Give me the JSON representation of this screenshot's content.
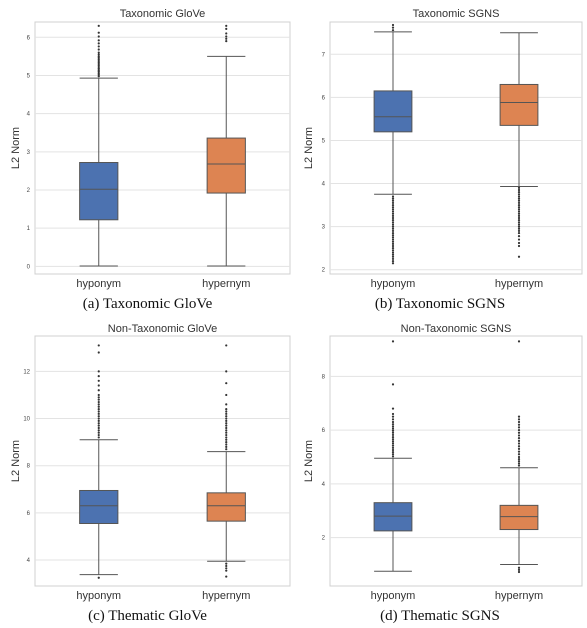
{
  "chart_data": [
    {
      "type": "box",
      "title": "Taxonomic GloVe",
      "ylabel": "L2 Norm",
      "xlabel": "",
      "categories": [
        "hyponym",
        "hypernym"
      ],
      "colors": [
        "#4c72b0",
        "#dd8452"
      ],
      "ylim": [
        -0.2,
        6.4
      ],
      "yticks": [
        0,
        1,
        2,
        3,
        4,
        5,
        6
      ],
      "grid": true,
      "boxes": [
        {
          "q1": 1.22,
          "median": 2.02,
          "q3": 2.72,
          "whisker_low": 0.01,
          "whisker_high": 4.93,
          "outliers": [
            4.98,
            5.02,
            5.06,
            5.1,
            5.14,
            5.18,
            5.22,
            5.26,
            5.3,
            5.34,
            5.38,
            5.42,
            5.46,
            5.5,
            5.55,
            5.6,
            5.68,
            5.76,
            5.84,
            5.92,
            6.02,
            6.12,
            6.3
          ]
        },
        {
          "q1": 1.92,
          "median": 2.68,
          "q3": 3.36,
          "whisker_low": 0.01,
          "whisker_high": 5.5,
          "outliers": [
            5.9,
            5.96,
            6.02,
            6.1,
            6.22,
            6.3
          ]
        }
      ]
    },
    {
      "type": "box",
      "title": "Taxonomic SGNS",
      "ylabel": "L2 Norm",
      "xlabel": "",
      "categories": [
        "hyponym",
        "hypernym"
      ],
      "colors": [
        "#4c72b0",
        "#dd8452"
      ],
      "ylim": [
        1.9,
        7.75
      ],
      "yticks": [
        2,
        3,
        4,
        5,
        6,
        7
      ],
      "grid": true,
      "boxes": [
        {
          "q1": 5.2,
          "median": 5.55,
          "q3": 6.15,
          "whisker_low": 3.75,
          "whisker_high": 7.52,
          "outliers": [
            2.15,
            2.2,
            2.25,
            2.3,
            2.35,
            2.4,
            2.45,
            2.5,
            2.55,
            2.6,
            2.65,
            2.7,
            2.75,
            2.8,
            2.85,
            2.9,
            2.95,
            3.0,
            3.05,
            3.1,
            3.15,
            3.2,
            3.25,
            3.3,
            3.35,
            3.4,
            3.45,
            3.5,
            3.55,
            3.6,
            3.65,
            3.7,
            7.56,
            7.62,
            7.68
          ]
        },
        {
          "q1": 5.35,
          "median": 5.88,
          "q3": 6.3,
          "whisker_low": 3.93,
          "whisker_high": 7.5,
          "outliers": [
            2.3,
            2.55,
            2.62,
            2.7,
            2.78,
            2.85,
            2.9,
            2.95,
            3.0,
            3.05,
            3.1,
            3.15,
            3.2,
            3.25,
            3.3,
            3.35,
            3.4,
            3.45,
            3.5,
            3.55,
            3.6,
            3.65,
            3.7,
            3.75,
            3.8,
            3.85,
            3.9
          ]
        }
      ]
    },
    {
      "type": "box",
      "title": "Non-Taxonomic GloVe",
      "ylabel": "L2 Norm",
      "xlabel": "",
      "categories": [
        "hyponym",
        "hypernym"
      ],
      "colors": [
        "#4c72b0",
        "#dd8452"
      ],
      "ylim": [
        2.9,
        13.5
      ],
      "yticks": [
        4,
        6,
        8,
        10,
        12
      ],
      "grid": true,
      "boxes": [
        {
          "q1": 5.55,
          "median": 6.3,
          "q3": 6.95,
          "whisker_low": 3.38,
          "whisker_high": 9.1,
          "outliers": [
            3.25,
            9.2,
            9.3,
            9.4,
            9.5,
            9.6,
            9.7,
            9.8,
            9.9,
            10.0,
            10.1,
            10.2,
            10.3,
            10.4,
            10.5,
            10.6,
            10.7,
            10.8,
            10.9,
            11.0,
            11.2,
            11.4,
            11.6,
            11.8,
            12.0,
            12.8,
            13.1
          ]
        },
        {
          "q1": 5.65,
          "median": 6.3,
          "q3": 6.85,
          "whisker_low": 3.95,
          "whisker_high": 8.6,
          "outliers": [
            3.3,
            3.55,
            3.65,
            3.75,
            3.85,
            8.7,
            8.8,
            8.9,
            9.0,
            9.1,
            9.2,
            9.3,
            9.4,
            9.5,
            9.6,
            9.7,
            9.8,
            9.9,
            10.0,
            10.1,
            10.2,
            10.3,
            10.4,
            10.6,
            11.0,
            11.5,
            12.0,
            13.1
          ]
        }
      ]
    },
    {
      "type": "box",
      "title": "Non-Taxonomic SGNS",
      "ylabel": "L2 Norm",
      "xlabel": "",
      "categories": [
        "hyponym",
        "hypernym"
      ],
      "colors": [
        "#4c72b0",
        "#dd8452"
      ],
      "ylim": [
        0.2,
        9.5
      ],
      "yticks": [
        2,
        4,
        6,
        8
      ],
      "grid": true,
      "boxes": [
        {
          "q1": 2.25,
          "median": 2.8,
          "q3": 3.3,
          "whisker_low": 0.75,
          "whisker_high": 4.95,
          "outliers": [
            5.02,
            5.1,
            5.18,
            5.26,
            5.34,
            5.42,
            5.5,
            5.58,
            5.66,
            5.74,
            5.82,
            5.9,
            5.98,
            6.06,
            6.14,
            6.22,
            6.3,
            6.4,
            6.5,
            6.6,
            6.8,
            7.7,
            9.3
          ]
        },
        {
          "q1": 2.3,
          "median": 2.78,
          "q3": 3.2,
          "whisker_low": 1.0,
          "whisker_high": 4.6,
          "outliers": [
            0.72,
            0.8,
            0.88,
            4.68,
            4.76,
            4.84,
            4.92,
            5.0,
            5.1,
            5.2,
            5.3,
            5.4,
            5.5,
            5.6,
            5.7,
            5.8,
            5.9,
            6.0,
            6.1,
            6.2,
            6.3,
            6.4,
            6.5,
            9.3
          ]
        }
      ]
    }
  ],
  "captions": [
    "(a) Taxonomic GloVe",
    "(b) Taxonomic SGNS",
    "(c) Thematic GloVe",
    "(d) Thematic SGNS"
  ]
}
